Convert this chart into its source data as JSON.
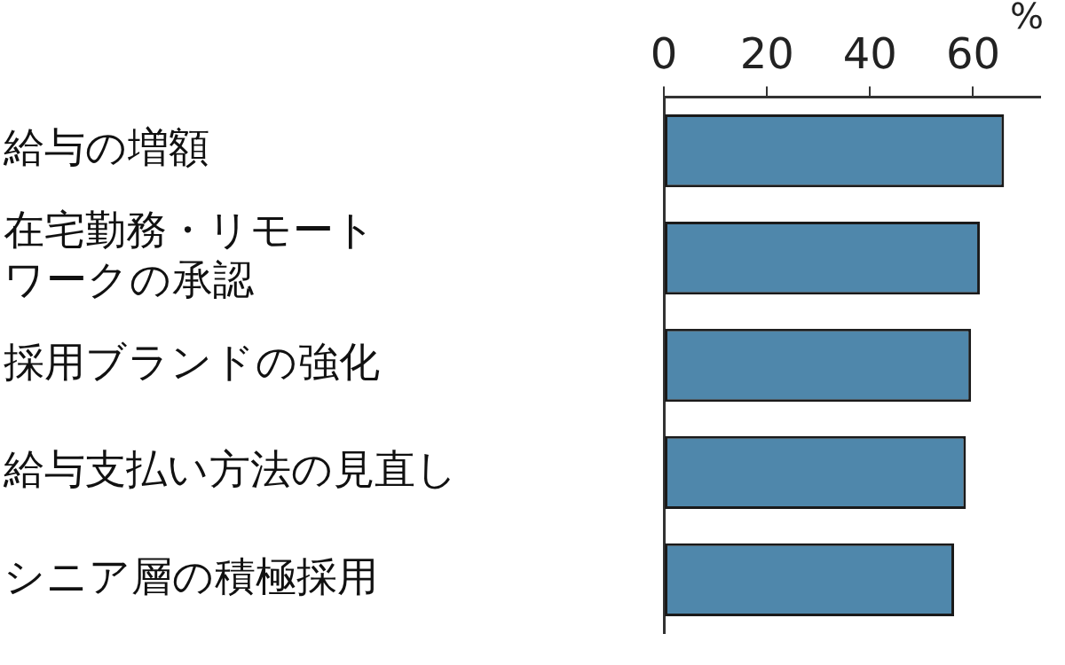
{
  "chart_data": {
    "type": "bar",
    "orientation": "horizontal",
    "categories": [
      "給与の増額",
      "在宅勤務・リモートワークの承認",
      "採用ブランドの強化",
      "給与支払い方法の見直し",
      "シニア層の積極採用"
    ],
    "values": [
      66,
      61.3,
      59.6,
      58.6,
      56.3
    ],
    "color": "#4f87ab",
    "xlabel": "%",
    "xlim": [
      0,
      73
    ],
    "xticks": [
      0,
      20,
      40,
      60
    ],
    "grid": false,
    "legend": false
  }
}
